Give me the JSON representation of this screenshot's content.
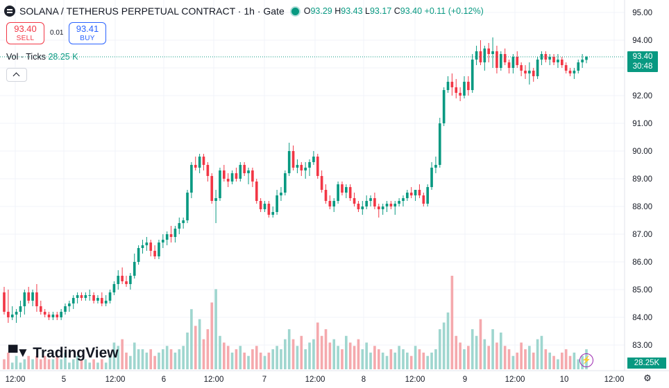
{
  "header": {
    "title": "SOLANA / TETHERUS PERPETUAL CONTRACT · 1h · Gate",
    "ohlc": {
      "o_label": "O",
      "o": "93.29",
      "h_label": "H",
      "h": "93.43",
      "l_label": "L",
      "l": "93.17",
      "c_label": "C",
      "c": "93.40",
      "change": "+0.11 (+0.12%)"
    }
  },
  "trade": {
    "sell_price": "93.40",
    "sell_label": "SELL",
    "spread": "0.01",
    "buy_price": "93.41",
    "buy_label": "BUY"
  },
  "volume_legend": {
    "label": "Vol · Ticks",
    "value": "28.25 K"
  },
  "price_tag": {
    "price": "93.40",
    "countdown": "30:48"
  },
  "volume_tag": "28.25K",
  "logo_text": "TradingView",
  "icons": [
    "symbol-icon",
    "market-status-dot",
    "collapse-chevron-icon",
    "tradingview-logo-icon",
    "lightning-icon",
    "gear-icon"
  ],
  "colors": {
    "up": "#089981",
    "down": "#f23645",
    "up_vol": "#9fd6cf",
    "down_vol": "#f5a9ad",
    "grid": "#f0f3fa"
  },
  "chart_data": {
    "type": "candlestick",
    "interval": "1h",
    "y_ticks": [
      "95.00",
      "94.00",
      "93.00",
      "92.00",
      "91.00",
      "90.00",
      "89.00",
      "88.00",
      "87.00",
      "86.00",
      "85.00",
      "84.00",
      "83.00"
    ],
    "x_ticks": [
      "12:00",
      "5",
      "12:00",
      "6",
      "12:00",
      "7",
      "12:00",
      "8",
      "12:00",
      "9",
      "12:00",
      "10",
      "12:00"
    ],
    "ylim": [
      82.4,
      95.4
    ],
    "last_price": 93.4,
    "candles": [
      [
        84.9,
        85.1,
        84.1,
        84.2
      ],
      [
        84.2,
        85.0,
        83.8,
        84.0
      ],
      [
        84.0,
        84.4,
        83.9,
        84.1
      ],
      [
        84.1,
        84.3,
        83.8,
        84.2
      ],
      [
        84.2,
        84.6,
        84.0,
        84.4
      ],
      [
        84.4,
        85.0,
        84.1,
        84.9
      ],
      [
        84.9,
        85.1,
        84.5,
        84.6
      ],
      [
        84.6,
        85.0,
        84.4,
        84.9
      ],
      [
        84.9,
        85.2,
        84.2,
        84.4
      ],
      [
        84.4,
        84.6,
        84.1,
        84.2
      ],
      [
        84.2,
        84.3,
        84.0,
        84.1
      ],
      [
        84.1,
        84.2,
        83.9,
        84.0
      ],
      [
        84.0,
        84.2,
        83.9,
        84.1
      ],
      [
        84.1,
        84.2,
        83.9,
        84.0
      ],
      [
        84.0,
        84.3,
        83.9,
        84.2
      ],
      [
        84.2,
        84.5,
        84.1,
        84.4
      ],
      [
        84.4,
        84.6,
        84.2,
        84.5
      ],
      [
        84.5,
        84.8,
        84.3,
        84.7
      ],
      [
        84.7,
        84.9,
        84.5,
        84.8
      ],
      [
        84.8,
        84.9,
        84.6,
        84.7
      ],
      [
        84.7,
        84.9,
        84.6,
        84.8
      ],
      [
        84.8,
        85.0,
        84.6,
        84.8
      ],
      [
        84.8,
        84.9,
        84.5,
        84.6
      ],
      [
        84.6,
        84.8,
        84.5,
        84.7
      ],
      [
        84.7,
        84.9,
        84.4,
        84.5
      ],
      [
        84.5,
        84.8,
        84.4,
        84.6
      ],
      [
        84.6,
        85.0,
        84.5,
        84.9
      ],
      [
        84.9,
        85.3,
        84.8,
        85.2
      ],
      [
        85.2,
        85.7,
        85.0,
        85.5
      ],
      [
        85.5,
        85.8,
        85.2,
        85.3
      ],
      [
        85.3,
        85.5,
        85.1,
        85.2
      ],
      [
        85.2,
        85.6,
        85.0,
        85.5
      ],
      [
        85.5,
        86.3,
        85.4,
        86.0
      ],
      [
        86.0,
        86.6,
        85.9,
        86.5
      ],
      [
        86.5,
        86.8,
        86.3,
        86.6
      ],
      [
        86.6,
        86.9,
        86.4,
        86.7
      ],
      [
        86.7,
        86.8,
        86.2,
        86.4
      ],
      [
        86.4,
        86.6,
        86.1,
        86.2
      ],
      [
        86.2,
        86.8,
        86.1,
        86.7
      ],
      [
        86.7,
        87.0,
        86.5,
        86.8
      ],
      [
        86.8,
        87.1,
        86.6,
        87.0
      ],
      [
        87.0,
        87.3,
        86.7,
        86.9
      ],
      [
        86.9,
        87.3,
        86.7,
        87.2
      ],
      [
        87.2,
        87.6,
        87.0,
        87.4
      ],
      [
        87.4,
        87.6,
        87.2,
        87.5
      ],
      [
        87.5,
        88.6,
        87.4,
        88.5
      ],
      [
        88.5,
        89.6,
        88.3,
        89.5
      ],
      [
        89.5,
        89.8,
        89.3,
        89.4
      ],
      [
        89.4,
        89.9,
        89.2,
        89.8
      ],
      [
        89.8,
        89.9,
        89.3,
        89.5
      ],
      [
        89.5,
        89.6,
        88.9,
        89.1
      ],
      [
        89.1,
        89.2,
        88.1,
        88.2
      ],
      [
        88.2,
        88.6,
        87.4,
        88.3
      ],
      [
        88.3,
        89.4,
        88.2,
        89.3
      ],
      [
        89.3,
        89.5,
        88.9,
        89.0
      ],
      [
        89.0,
        89.2,
        88.7,
        88.9
      ],
      [
        88.9,
        89.3,
        88.8,
        89.2
      ],
      [
        89.2,
        89.4,
        88.9,
        89.0
      ],
      [
        89.0,
        89.6,
        88.9,
        89.5
      ],
      [
        89.5,
        89.6,
        89.1,
        89.2
      ],
      [
        89.2,
        89.4,
        88.8,
        89.3
      ],
      [
        89.3,
        89.4,
        88.7,
        88.9
      ],
      [
        88.9,
        89.0,
        88.1,
        88.2
      ],
      [
        88.2,
        88.3,
        87.8,
        87.9
      ],
      [
        87.9,
        88.2,
        87.8,
        88.1
      ],
      [
        88.1,
        88.2,
        87.6,
        87.7
      ],
      [
        87.7,
        88.0,
        87.6,
        87.8
      ],
      [
        87.8,
        88.6,
        87.7,
        88.4
      ],
      [
        88.4,
        88.7,
        88.2,
        88.5
      ],
      [
        88.5,
        89.3,
        88.4,
        89.2
      ],
      [
        89.2,
        90.3,
        89.1,
        90.0
      ],
      [
        90.0,
        90.2,
        89.3,
        89.4
      ],
      [
        89.4,
        89.7,
        89.2,
        89.5
      ],
      [
        89.5,
        89.6,
        89.1,
        89.3
      ],
      [
        89.3,
        89.6,
        89.0,
        89.4
      ],
      [
        89.4,
        89.7,
        89.1,
        89.6
      ],
      [
        89.6,
        90.0,
        89.5,
        89.8
      ],
      [
        89.8,
        89.9,
        89.0,
        89.1
      ],
      [
        89.1,
        89.3,
        88.5,
        88.6
      ],
      [
        88.6,
        88.8,
        88.1,
        88.2
      ],
      [
        88.2,
        88.4,
        87.9,
        88.0
      ],
      [
        88.0,
        88.3,
        87.8,
        88.2
      ],
      [
        88.2,
        88.9,
        88.1,
        88.8
      ],
      [
        88.8,
        88.9,
        88.4,
        88.5
      ],
      [
        88.5,
        88.8,
        88.3,
        88.7
      ],
      [
        88.7,
        88.8,
        88.2,
        88.3
      ],
      [
        88.3,
        88.5,
        88.0,
        88.1
      ],
      [
        88.1,
        88.2,
        87.8,
        87.9
      ],
      [
        87.9,
        88.2,
        87.7,
        88.0
      ],
      [
        88.0,
        88.4,
        87.9,
        88.2
      ],
      [
        88.2,
        88.4,
        88.0,
        88.3
      ],
      [
        88.3,
        88.5,
        87.9,
        88.0
      ],
      [
        88.0,
        88.1,
        87.6,
        87.9
      ],
      [
        87.9,
        88.1,
        87.7,
        88.0
      ],
      [
        88.0,
        88.2,
        87.8,
        88.1
      ],
      [
        88.1,
        88.2,
        87.9,
        88.0
      ],
      [
        88.0,
        88.2,
        87.7,
        88.1
      ],
      [
        88.1,
        88.3,
        88.0,
        88.2
      ],
      [
        88.2,
        88.4,
        88.0,
        88.3
      ],
      [
        88.3,
        88.6,
        88.2,
        88.5
      ],
      [
        88.5,
        88.7,
        88.3,
        88.4
      ],
      [
        88.4,
        88.6,
        88.2,
        88.6
      ],
      [
        88.6,
        88.8,
        88.3,
        88.4
      ],
      [
        88.4,
        88.5,
        88.0,
        88.1
      ],
      [
        88.1,
        88.8,
        88.0,
        88.7
      ],
      [
        88.7,
        89.6,
        88.6,
        89.4
      ],
      [
        89.4,
        89.8,
        89.2,
        89.5
      ],
      [
        89.5,
        91.2,
        89.4,
        91.0
      ],
      [
        91.0,
        92.3,
        90.9,
        92.2
      ],
      [
        92.2,
        92.7,
        92.1,
        92.5
      ],
      [
        92.5,
        92.8,
        92.0,
        92.3
      ],
      [
        92.3,
        92.6,
        91.9,
        92.1
      ],
      [
        92.1,
        92.3,
        91.8,
        92.0
      ],
      [
        92.0,
        92.7,
        91.9,
        92.5
      ],
      [
        92.5,
        92.7,
        92.0,
        92.2
      ],
      [
        92.2,
        93.5,
        92.1,
        93.3
      ],
      [
        93.3,
        93.8,
        93.1,
        93.6
      ],
      [
        93.6,
        94.0,
        93.1,
        93.2
      ],
      [
        93.2,
        93.8,
        92.9,
        93.7
      ],
      [
        93.7,
        93.9,
        93.2,
        93.5
      ],
      [
        93.5,
        94.1,
        93.0,
        93.6
      ],
      [
        93.6,
        93.8,
        92.8,
        93.0
      ],
      [
        93.0,
        93.6,
        92.9,
        93.5
      ],
      [
        93.5,
        93.7,
        93.1,
        93.2
      ],
      [
        93.2,
        93.3,
        92.8,
        93.0
      ],
      [
        93.0,
        93.5,
        92.8,
        93.4
      ],
      [
        93.4,
        93.6,
        93.0,
        93.1
      ],
      [
        93.1,
        93.2,
        92.7,
        92.9
      ],
      [
        92.9,
        93.1,
        92.6,
        92.8
      ],
      [
        92.8,
        93.2,
        92.4,
        92.9
      ],
      [
        92.9,
        93.0,
        92.5,
        92.7
      ],
      [
        92.7,
        93.4,
        92.6,
        93.3
      ],
      [
        93.3,
        93.6,
        93.1,
        93.5
      ],
      [
        93.5,
        93.6,
        93.2,
        93.3
      ],
      [
        93.3,
        93.5,
        93.1,
        93.4
      ],
      [
        93.4,
        93.5,
        93.1,
        93.2
      ],
      [
        93.2,
        93.5,
        93.0,
        93.3
      ],
      [
        93.3,
        93.4,
        93.0,
        93.1
      ],
      [
        93.1,
        93.2,
        92.8,
        92.9
      ],
      [
        92.9,
        93.0,
        92.7,
        92.8
      ],
      [
        92.8,
        93.0,
        92.6,
        92.9
      ],
      [
        92.9,
        93.3,
        92.8,
        93.2
      ],
      [
        93.2,
        93.5,
        93.0,
        93.3
      ],
      [
        93.29,
        93.43,
        93.17,
        93.4
      ]
    ],
    "volume": [
      3,
      5,
      2,
      4,
      2,
      3,
      4,
      3,
      4,
      3,
      4,
      3,
      3,
      4,
      3,
      5,
      2,
      3,
      4,
      3,
      3,
      2,
      3,
      2,
      3,
      2,
      4,
      8,
      7,
      9,
      5,
      4,
      8,
      6,
      6,
      5,
      6,
      4,
      5,
      6,
      7,
      6,
      5,
      6,
      7,
      11,
      18,
      13,
      15,
      9,
      12,
      20,
      24,
      10,
      8,
      7,
      5,
      6,
      7,
      5,
      4,
      6,
      7,
      5,
      4,
      5,
      6,
      7,
      6,
      9,
      12,
      9,
      7,
      10,
      6,
      8,
      9,
      14,
      10,
      12,
      8,
      9,
      7,
      6,
      10,
      8,
      7,
      9,
      6,
      8,
      5,
      7,
      6,
      5,
      4,
      6,
      5,
      7,
      6,
      5,
      4,
      7,
      6,
      5,
      4,
      5,
      6,
      12,
      14,
      17,
      28,
      10,
      8,
      6,
      7,
      12,
      10,
      15,
      9,
      7,
      12,
      8,
      11,
      7,
      6,
      4,
      5,
      8,
      6,
      7,
      5,
      9,
      10,
      6,
      5,
      4,
      3,
      5,
      6,
      4,
      5,
      3,
      4,
      6
    ]
  }
}
